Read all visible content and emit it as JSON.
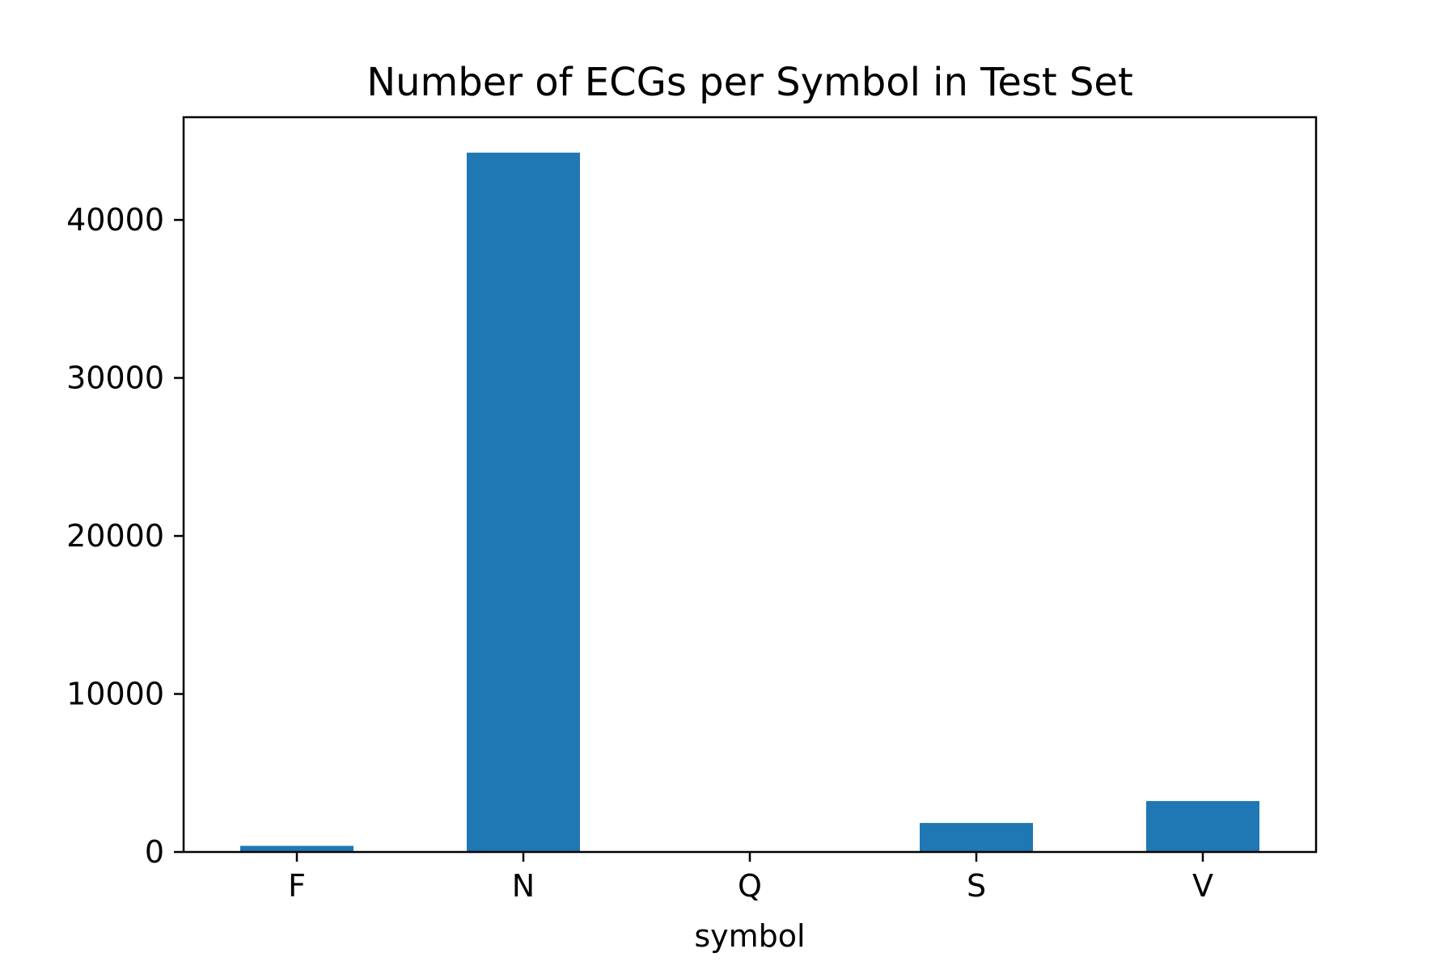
{
  "chart_data": {
    "type": "bar",
    "title": "Number of ECGs per Symbol in Test Set",
    "xlabel": "symbol",
    "ylabel": "",
    "categories": [
      "F",
      "N",
      "Q",
      "S",
      "V"
    ],
    "values": [
      388,
      44259,
      7,
      1837,
      3221
    ],
    "ylim": [
      0,
      46500
    ],
    "yticks": [
      0,
      10000,
      20000,
      30000,
      40000
    ],
    "ytick_labels": [
      "0",
      "10000",
      "20000",
      "30000",
      "40000"
    ],
    "bar_color": "#1f77b4",
    "grid": false,
    "legend": "none"
  }
}
